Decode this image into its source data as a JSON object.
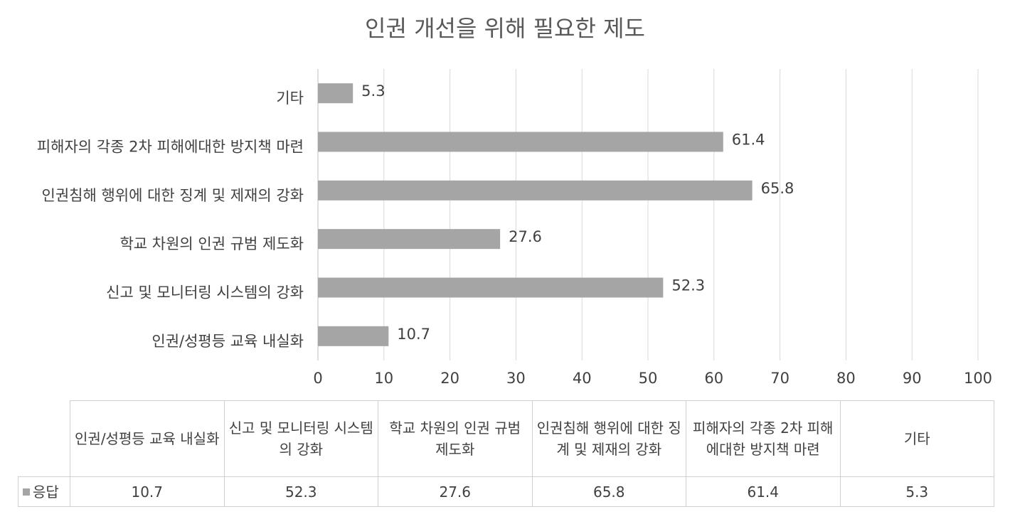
{
  "chart_data": {
    "type": "bar",
    "orientation": "horizontal",
    "title": "인권 개선을 위해 필요한 제도",
    "categories": [
      "인권/성평등 교육 내실화",
      "신고 및 모니터링 시스템의 강화",
      "학교 차원의 인권 규범 제도화",
      "인권침해 행위에 대한 징계 및 제재의 강화",
      "피해자의 각종 2차 피해에대한 방지책 마련",
      "기타"
    ],
    "series": [
      {
        "name": "응답",
        "color": "#a5a5a5",
        "values": [
          10.7,
          52.3,
          27.6,
          65.8,
          61.4,
          5.3
        ]
      }
    ],
    "xlim": [
      0,
      100
    ],
    "xticks": [
      0,
      10,
      20,
      30,
      40,
      50,
      60,
      70,
      80,
      90,
      100
    ],
    "grid": true,
    "data_table": true
  }
}
